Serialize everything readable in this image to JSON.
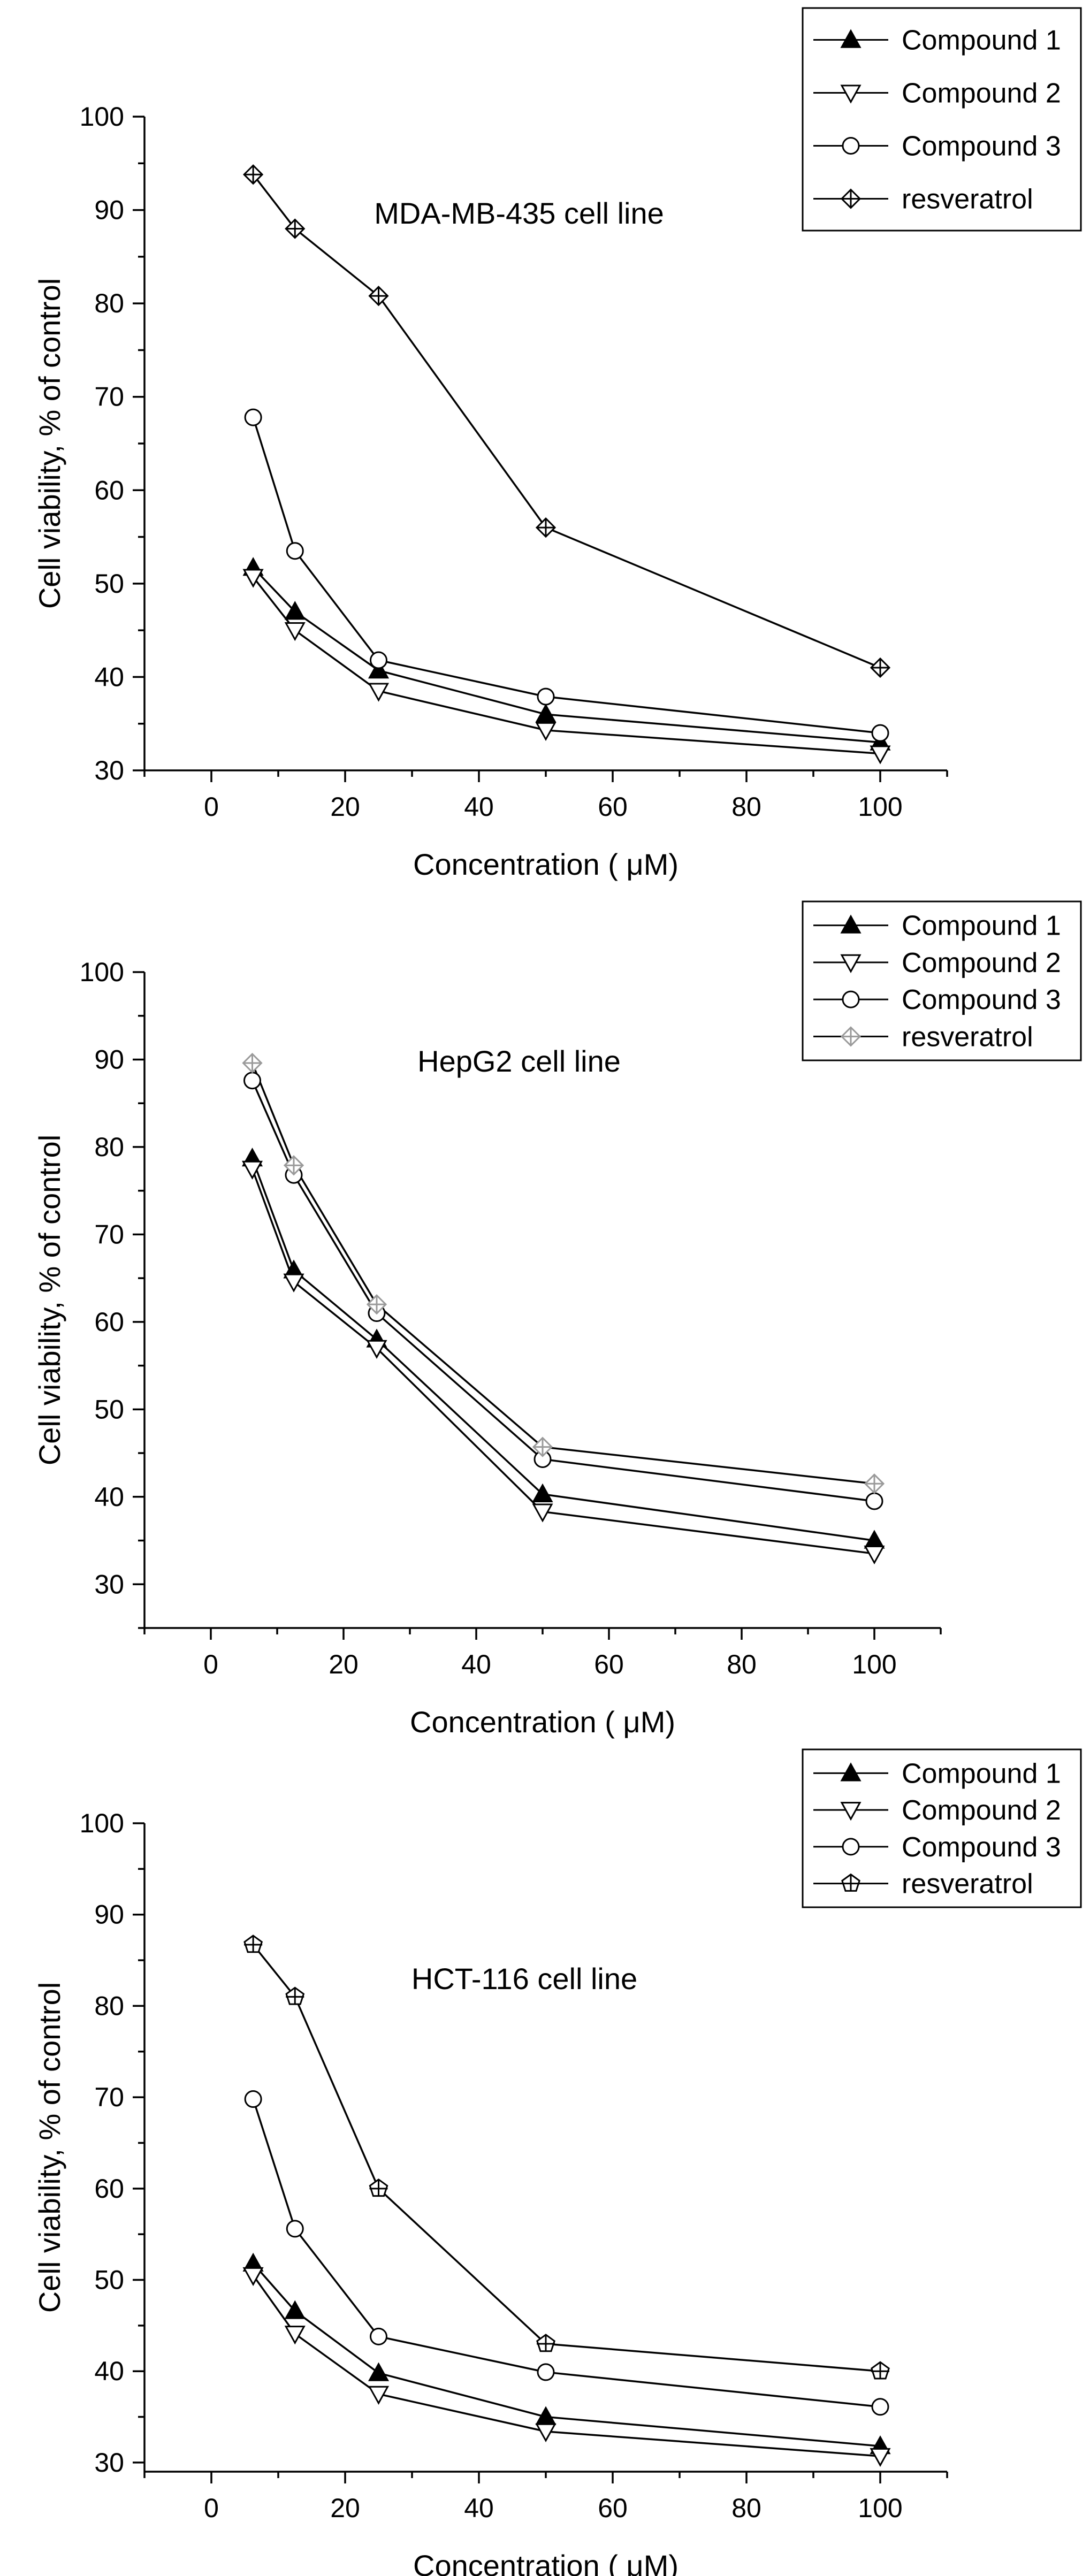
{
  "chart_data": [
    {
      "type": "line",
      "title": "MDA-MB-435 cell line",
      "xlabel": "Concentration ( μM)",
      "ylabel": "Cell viability, % of control",
      "xlim": [
        -10,
        110
      ],
      "ylim": [
        30,
        100
      ],
      "xticks": [
        0,
        20,
        40,
        60,
        80,
        100
      ],
      "yticks": [
        30,
        40,
        50,
        60,
        70,
        80,
        90,
        100
      ],
      "grid": false,
      "legend_position": "top-right",
      "x": [
        6.25,
        12.5,
        25,
        50,
        100
      ],
      "series": [
        {
          "name": "Compound 1",
          "marker": "triangle-up-filled",
          "values": [
            51.7,
            47.0,
            40.7,
            36.0,
            33.0
          ]
        },
        {
          "name": "Compound 2",
          "marker": "triangle-down-open",
          "values": [
            50.7,
            45.0,
            38.5,
            34.3,
            31.8
          ]
        },
        {
          "name": "Compound 3",
          "marker": "circle-open",
          "values": [
            67.8,
            53.5,
            41.8,
            37.9,
            34.0
          ]
        },
        {
          "name": "resveratrol",
          "marker": "diamond-cross",
          "values": [
            93.8,
            88.0,
            80.8,
            56.0,
            41.0
          ]
        }
      ]
    },
    {
      "type": "line",
      "title": "HepG2 cell line",
      "xlabel": "Concentration ( μM)",
      "ylabel": "Cell viability, % of control",
      "xlim": [
        -10,
        110
      ],
      "ylim": [
        25,
        100
      ],
      "xticks": [
        0,
        20,
        40,
        60,
        80,
        100
      ],
      "yticks": [
        30,
        40,
        50,
        60,
        70,
        80,
        90,
        100
      ],
      "grid": false,
      "legend_position": "top-right",
      "x": [
        6.25,
        12.5,
        25,
        50,
        100
      ],
      "series": [
        {
          "name": "Compound 1",
          "marker": "triangle-up-filled",
          "values": [
            78.7,
            65.9,
            58.0,
            40.3,
            35.0
          ]
        },
        {
          "name": "Compound 2",
          "marker": "triangle-down-open",
          "values": [
            77.5,
            64.6,
            57.0,
            38.3,
            33.5
          ]
        },
        {
          "name": "Compound 3",
          "marker": "circle-open",
          "values": [
            87.6,
            76.8,
            61.0,
            44.3,
            39.5
          ]
        },
        {
          "name": "resveratrol",
          "marker": "diamond-cross-light",
          "values": [
            89.6,
            77.9,
            62.0,
            45.7,
            41.5
          ]
        }
      ]
    },
    {
      "type": "line",
      "title": "HCT-116 cell line",
      "xlabel": "Concentration ( μM)",
      "ylabel": "Cell viability, % of control",
      "xlim": [
        -10,
        110
      ],
      "ylim": [
        29,
        100
      ],
      "xticks": [
        0,
        20,
        40,
        60,
        80,
        100
      ],
      "yticks": [
        30,
        40,
        50,
        60,
        70,
        80,
        90,
        100
      ],
      "grid": false,
      "legend_position": "top-right",
      "x": [
        6.25,
        12.5,
        25,
        50,
        100
      ],
      "series": [
        {
          "name": "Compound 1",
          "marker": "triangle-up-filled",
          "values": [
            51.8,
            46.6,
            39.8,
            35.0,
            31.8
          ]
        },
        {
          "name": "Compound 2",
          "marker": "triangle-down-open",
          "values": [
            50.5,
            44.1,
            37.5,
            33.4,
            30.7
          ]
        },
        {
          "name": "Compound 3",
          "marker": "circle-open",
          "values": [
            69.8,
            55.6,
            43.8,
            39.9,
            36.1
          ]
        },
        {
          "name": "resveratrol",
          "marker": "pentagon-cross",
          "values": [
            86.7,
            81.0,
            60.0,
            43.0,
            40.0
          ]
        }
      ]
    }
  ]
}
